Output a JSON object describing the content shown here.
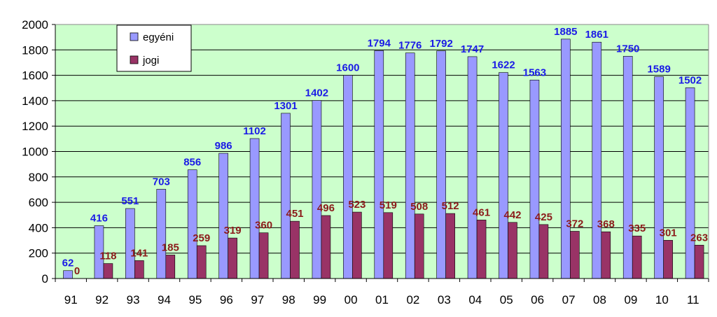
{
  "chart_data": {
    "type": "bar",
    "title": "",
    "xlabel": "",
    "ylabel": "",
    "ylim": [
      0,
      2000
    ],
    "yticks": [
      0,
      200,
      400,
      600,
      800,
      1000,
      1200,
      1400,
      1600,
      1800,
      2000
    ],
    "grid": true,
    "legend_position": "top-left",
    "categories": [
      "91",
      "92",
      "93",
      "94",
      "95",
      "96",
      "97",
      "98",
      "99",
      "00",
      "01",
      "02",
      "03",
      "04",
      "05",
      "06",
      "07",
      "08",
      "09",
      "10",
      "11"
    ],
    "series": [
      {
        "name": "egyéni",
        "color": "#9999ff",
        "label_color": "#1a1ae6",
        "values": [
          62,
          416,
          551,
          703,
          856,
          986,
          1102,
          1301,
          1402,
          1600,
          1794,
          1776,
          1792,
          1747,
          1622,
          1563,
          1885,
          1861,
          1750,
          1589,
          1502
        ]
      },
      {
        "name": "jogi",
        "color": "#993366",
        "label_color": "#8b1a1a",
        "values": [
          0,
          118,
          141,
          185,
          259,
          319,
          360,
          451,
          496,
          523,
          519,
          508,
          512,
          461,
          442,
          425,
          372,
          368,
          335,
          301,
          263
        ]
      }
    ],
    "colors": {
      "plot_background": "#ccffcc",
      "gridline": "#000000"
    }
  }
}
